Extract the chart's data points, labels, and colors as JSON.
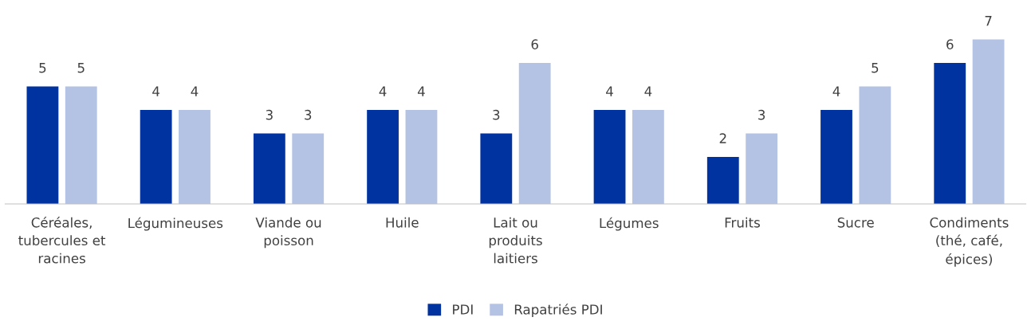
{
  "chart_data": {
    "type": "bar",
    "categories": [
      "Céréales,\ntubercules et\nracines",
      "Légumineuses",
      "Viande ou\npoisson",
      "Huile",
      "Lait ou\nproduits\nlaitiers",
      "Légumes",
      "Fruits",
      "Sucre",
      "Condiments\n(thé, café,\népices)"
    ],
    "series": [
      {
        "name": "PDI",
        "color": "#0033a0",
        "values": [
          5,
          4,
          3,
          4,
          3,
          4,
          2,
          4,
          6
        ]
      },
      {
        "name": "Rapatriés PDI",
        "color": "#b4c3e4",
        "values": [
          5,
          4,
          3,
          4,
          6,
          4,
          3,
          5,
          7
        ]
      }
    ],
    "data_labels": true,
    "legend": "bottom",
    "grid": false,
    "tick_labels": "x"
  }
}
